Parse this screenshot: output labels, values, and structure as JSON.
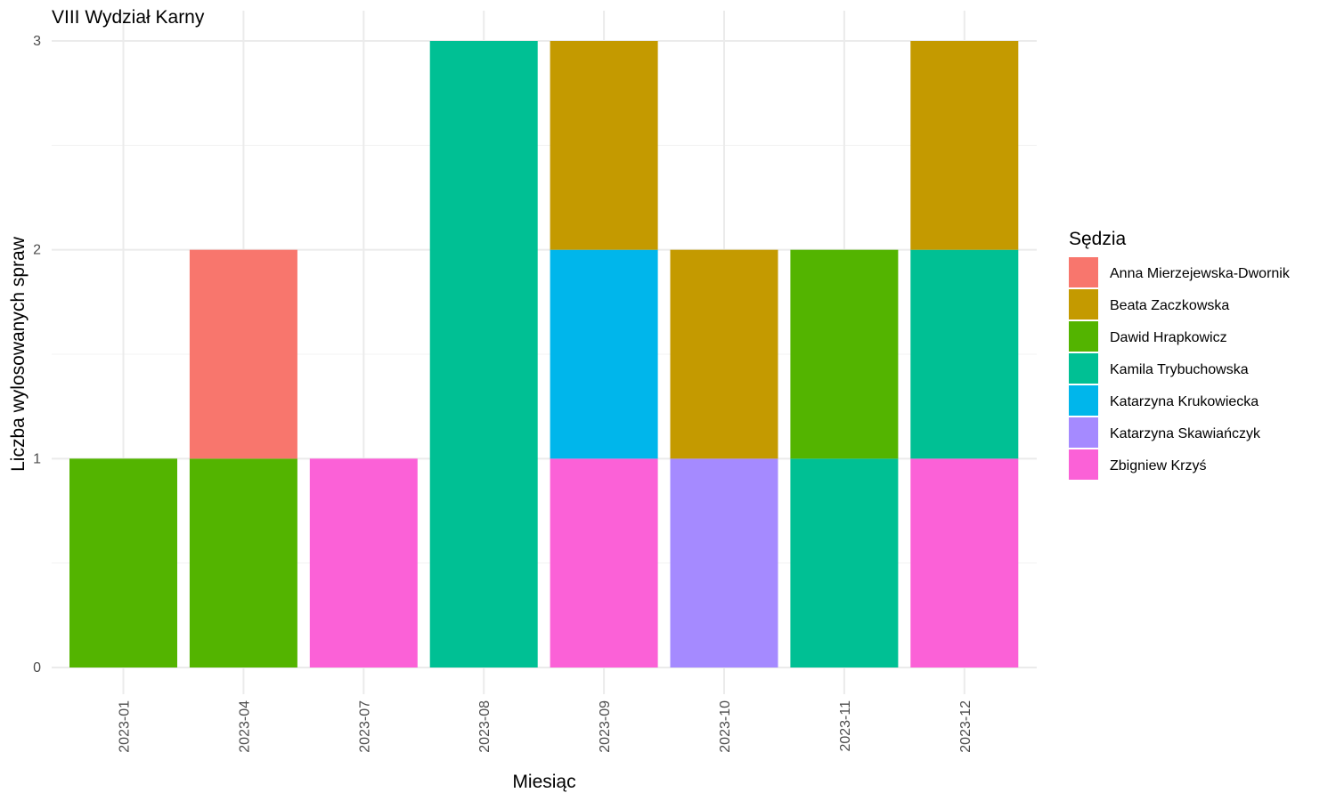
{
  "chart_data": {
    "type": "bar",
    "stacked": true,
    "title": "VIII Wydział Karny",
    "xlabel": "Miesiąc",
    "ylabel": "Liczba wylosowanych spraw",
    "ylim": [
      0,
      3
    ],
    "yticks": [
      "0",
      "1",
      "2",
      "3"
    ],
    "grid": true,
    "legend_title": "Sędzia",
    "legend_position": "right",
    "categories": [
      "2023-01",
      "2023-04",
      "2023-07",
      "2023-08",
      "2023-09",
      "2023-10",
      "2023-11",
      "2023-12"
    ],
    "series": [
      {
        "name": "Anna Mierzejewska-Dwornik",
        "color": "#F8766D",
        "values": [
          0,
          1,
          0,
          0,
          0,
          0,
          0,
          0
        ]
      },
      {
        "name": "Beata Zaczkowska",
        "color": "#C49A00",
        "values": [
          0,
          0,
          0,
          0,
          1,
          1,
          0,
          1
        ]
      },
      {
        "name": "Dawid Hrapkowicz",
        "color": "#53B400",
        "values": [
          1,
          1,
          0,
          0,
          0,
          0,
          1,
          0
        ]
      },
      {
        "name": "Kamila Trybuchowska",
        "color": "#00C094",
        "values": [
          0,
          0,
          0,
          3,
          0,
          0,
          1,
          1
        ]
      },
      {
        "name": "Katarzyna Krukowiecka",
        "color": "#00B6EB",
        "values": [
          0,
          0,
          0,
          0,
          1,
          0,
          0,
          0
        ]
      },
      {
        "name": "Katarzyna Skawiańczyk",
        "color": "#A58AFF",
        "values": [
          0,
          0,
          0,
          0,
          0,
          1,
          0,
          0
        ]
      },
      {
        "name": "Zbigniew Krzyś",
        "color": "#FB61D7",
        "values": [
          0,
          0,
          1,
          0,
          1,
          0,
          0,
          1
        ]
      }
    ]
  }
}
